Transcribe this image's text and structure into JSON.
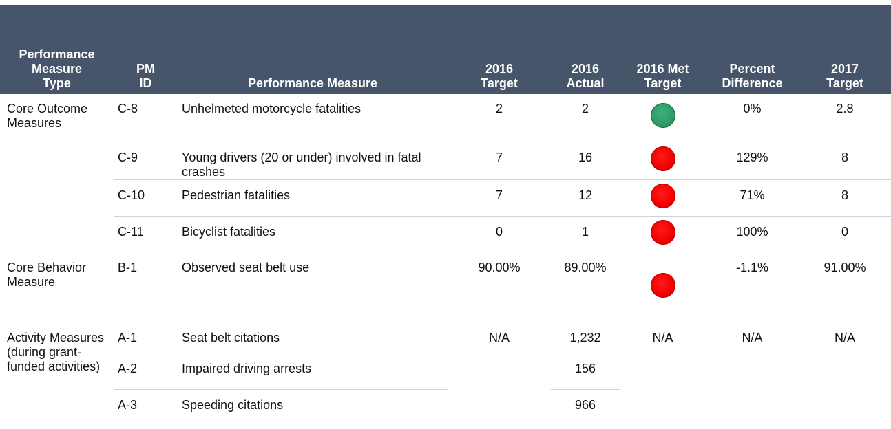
{
  "table": {
    "header": [
      "Performance Measure Type",
      "PM ID",
      "Performance Measure",
      "2016 Target",
      "2016 Actual",
      "2016 Met Target",
      "Percent Difference",
      "2017 Target"
    ],
    "groups": [
      {
        "type": "Core Outcome Measures",
        "rows": [
          {
            "id": "C-8",
            "measure": "Unhelmeted motorcycle fatalities",
            "target": "2",
            "actual": "2",
            "indicator": "green",
            "percent": "0%",
            "target_2017": "2.8"
          },
          {
            "id": "C-9",
            "measure": "Young drivers (20 or under) involved in fatal crashes",
            "target": "7",
            "actual": "16",
            "indicator": "red",
            "percent": "129%",
            "target_2017": "8"
          },
          {
            "id": "C-10",
            "measure": "Pedestrian fatalities",
            "target": "7",
            "actual": "12",
            "indicator": "red",
            "percent": "71%",
            "target_2017": "8"
          },
          {
            "id": "C-11",
            "measure": "Bicyclist fatalities",
            "target": "0",
            "actual": "1",
            "indicator": "red",
            "percent": "100%",
            "target_2017": "0"
          }
        ]
      },
      {
        "type": "Core Behavior Measure",
        "rows": [
          {
            "id": "B-1",
            "measure": "Observed seat belt use",
            "target": "90.00%",
            "actual": "89.00%",
            "indicator": "red",
            "percent": "-1.1%",
            "target_2017": "91.00%"
          }
        ]
      },
      {
        "type": "Activity Measures (during grant-funded activities)",
        "shared": {
          "target": "N/A",
          "met": "N/A",
          "percent": "N/A",
          "target_2017": "N/A"
        },
        "rows": [
          {
            "id": "A-1",
            "measure": "Seat belt citations",
            "actual": "1,232"
          },
          {
            "id": "A-2",
            "measure": "Impaired driving arrests",
            "actual": "156"
          },
          {
            "id": "A-3",
            "measure": "Speeding citations",
            "actual": "966"
          }
        ]
      }
    ]
  }
}
